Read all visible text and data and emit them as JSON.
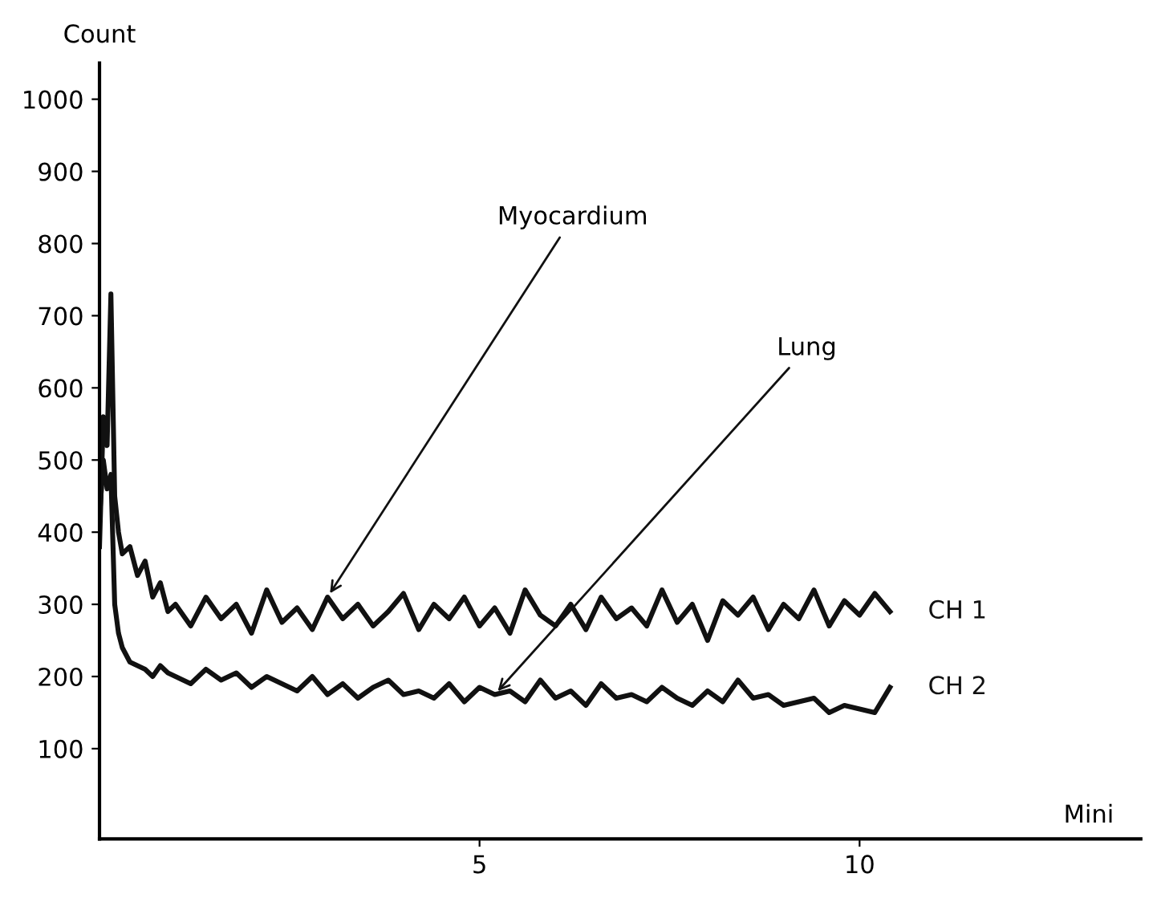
{
  "chart_data": {
    "type": "line",
    "xlabel": "Mini",
    "ylabel": "Count",
    "xlim": [
      0,
      13.7
    ],
    "ylim": [
      -25,
      1050
    ],
    "xticks": [
      5,
      10
    ],
    "yticks": [
      100,
      200,
      300,
      400,
      500,
      600,
      700,
      800,
      900,
      1000
    ],
    "grid": false,
    "marker": "none",
    "line_style": "solid",
    "x": [
      0,
      0.05,
      0.1,
      0.15,
      0.2,
      0.25,
      0.3,
      0.4,
      0.5,
      0.6,
      0.7,
      0.8,
      0.9,
      1.0,
      1.2,
      1.4,
      1.6,
      1.8,
      2.0,
      2.2,
      2.4,
      2.6,
      2.8,
      3.0,
      3.2,
      3.4,
      3.6,
      3.8,
      4.0,
      4.2,
      4.4,
      4.6,
      4.8,
      5.0,
      5.2,
      5.4,
      5.6,
      5.8,
      6.0,
      6.2,
      6.4,
      6.6,
      6.8,
      7.0,
      7.2,
      7.4,
      7.6,
      7.8,
      8.0,
      8.2,
      8.4,
      8.6,
      8.8,
      9.0,
      9.2,
      9.4,
      9.6,
      9.8,
      10.0,
      10.2,
      10.4
    ],
    "series": [
      {
        "name": "CH 1",
        "color": "#111111",
        "values": [
          380,
          560,
          520,
          730,
          450,
          400,
          370,
          380,
          340,
          360,
          310,
          330,
          290,
          300,
          270,
          310,
          280,
          300,
          260,
          320,
          275,
          295,
          265,
          310,
          280,
          300,
          270,
          290,
          315,
          265,
          300,
          280,
          310,
          270,
          295,
          260,
          320,
          285,
          270,
          300,
          265,
          310,
          280,
          295,
          270,
          320,
          275,
          300,
          250,
          305,
          285,
          310,
          265,
          300,
          280,
          320,
          270,
          305,
          285,
          315,
          290
        ]
      },
      {
        "name": "CH 2",
        "color": "#111111",
        "values": [
          420,
          500,
          460,
          480,
          300,
          260,
          240,
          220,
          215,
          210,
          200,
          215,
          205,
          200,
          190,
          210,
          195,
          205,
          185,
          200,
          190,
          180,
          200,
          175,
          190,
          170,
          185,
          195,
          175,
          180,
          170,
          190,
          165,
          185,
          175,
          180,
          165,
          195,
          170,
          180,
          160,
          190,
          170,
          175,
          165,
          185,
          170,
          160,
          180,
          165,
          195,
          170,
          175,
          160,
          165,
          170,
          150,
          160,
          155,
          150,
          185
        ]
      }
    ],
    "annotations": [
      {
        "text": "Myocardium",
        "x": 3.0,
        "y": 310
      },
      {
        "text": "Lung",
        "x": 5.2,
        "y": 175
      }
    ]
  }
}
